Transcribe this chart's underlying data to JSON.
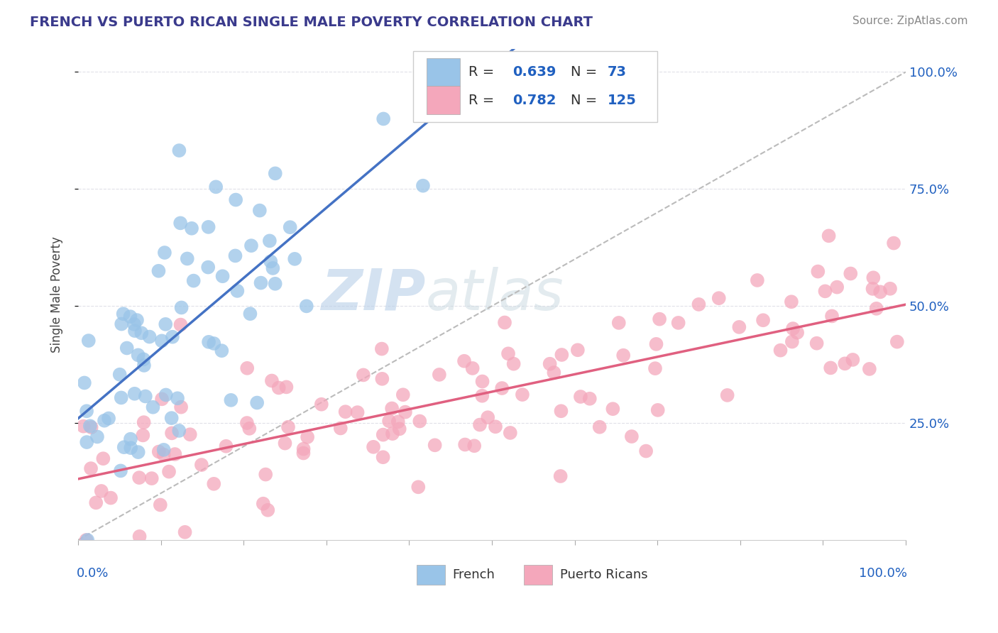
{
  "title": "FRENCH VS PUERTO RICAN SINGLE MALE POVERTY CORRELATION CHART",
  "source": "Source: ZipAtlas.com",
  "ylabel": "Single Male Poverty",
  "french_R": 0.639,
  "french_N": 73,
  "puerto_rican_R": 0.782,
  "puerto_rican_N": 125,
  "french_color": "#99c4e8",
  "puerto_rican_color": "#f4a7bb",
  "french_line_color": "#4472c4",
  "puerto_rican_line_color": "#e06080",
  "dashed_line_color": "#bbbbbb",
  "watermark_zip": "ZIP",
  "watermark_atlas": "atlas",
  "title_color": "#3a3a8c",
  "source_color": "#888888",
  "legend_R_color": "#2060c0",
  "legend_N_color": "#2060c0",
  "ytick_labels": [
    "25.0%",
    "50.0%",
    "75.0%",
    "100.0%"
  ],
  "ytick_positions": [
    0.25,
    0.5,
    0.75,
    1.0
  ],
  "background_color": "#ffffff",
  "grid_color": "#e0e0e8",
  "seed": 7
}
